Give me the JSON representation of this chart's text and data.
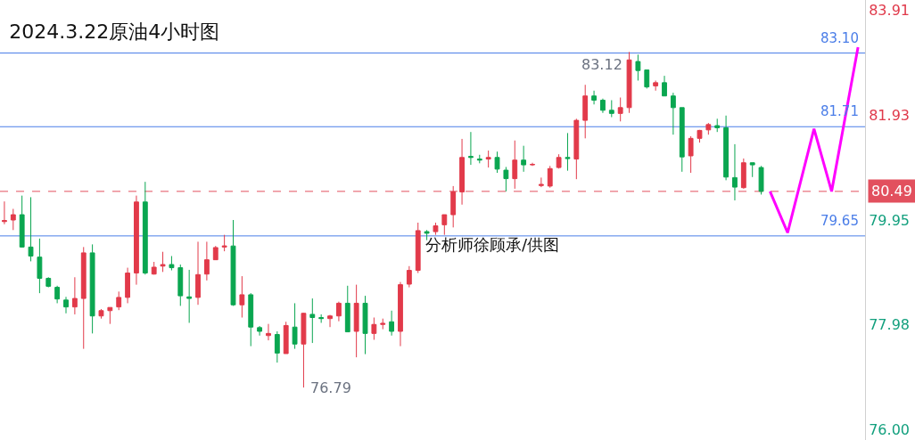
{
  "chart_data": {
    "type": "candlestick",
    "title": "2024.3.22原油4小时图",
    "categories": [
      null,
      null,
      null,
      null,
      null,
      null,
      null,
      null,
      null,
      null,
      null,
      null,
      null,
      null,
      null,
      null,
      null,
      null,
      null,
      null,
      null,
      null,
      null,
      null,
      null,
      null,
      null,
      null,
      null,
      null,
      null,
      null,
      null,
      null,
      null,
      null,
      null,
      null,
      null,
      null,
      null,
      null,
      null,
      null,
      null,
      null,
      null,
      null,
      null,
      null,
      null,
      null,
      null,
      null,
      null,
      null,
      null,
      null,
      null,
      null,
      null,
      null,
      null,
      null,
      null,
      null,
      null,
      null,
      null,
      null,
      null,
      null,
      null,
      null,
      null,
      null,
      null,
      null,
      null,
      null,
      null,
      null,
      null,
      null,
      null,
      null,
      null,
      null,
      null,
      null,
      null,
      null,
      null,
      null,
      null,
      null,
      null,
      null
    ],
    "ohlc": [
      [
        79.92,
        80.3,
        79.87,
        79.94
      ],
      [
        79.95,
        80.16,
        79.76,
        80.05
      ],
      [
        80.05,
        80.41,
        79.43,
        79.44
      ],
      [
        79.44,
        80.38,
        79.17,
        79.27
      ],
      [
        79.25,
        79.6,
        78.57,
        78.85
      ],
      [
        78.85,
        78.87,
        78.68,
        78.7
      ],
      [
        78.68,
        78.71,
        78.38,
        78.46
      ],
      [
        78.44,
        78.5,
        78.19,
        78.31
      ],
      [
        78.31,
        78.87,
        78.17,
        78.47
      ],
      [
        78.47,
        79.44,
        77.52,
        79.33
      ],
      [
        79.33,
        79.49,
        77.81,
        78.14
      ],
      [
        78.14,
        78.27,
        78.09,
        78.24
      ],
      [
        78.24,
        78.3,
        77.99,
        78.3
      ],
      [
        78.31,
        78.6,
        78.25,
        78.49
      ],
      [
        78.49,
        79.05,
        78.38,
        78.95
      ],
      [
        78.95,
        80.41,
        78.73,
        80.29
      ],
      [
        80.29,
        80.67,
        78.92,
        78.95
      ],
      [
        78.93,
        79.16,
        78.92,
        79.06
      ],
      [
        79.08,
        79.35,
        78.97,
        79.11
      ],
      [
        79.11,
        79.27,
        79.0,
        79.05
      ],
      [
        79.05,
        79.11,
        78.33,
        78.52
      ],
      [
        78.5,
        79.01,
        78.01,
        78.47
      ],
      [
        78.49,
        79.54,
        78.35,
        78.92
      ],
      [
        78.93,
        79.54,
        78.81,
        79.2
      ],
      [
        79.2,
        79.46,
        79.2,
        79.43
      ],
      [
        79.44,
        79.67,
        79.36,
        79.46
      ],
      [
        79.46,
        79.95,
        78.33,
        78.35
      ],
      [
        78.35,
        78.89,
        78.11,
        78.54
      ],
      [
        78.54,
        78.57,
        77.57,
        77.93
      ],
      [
        77.92,
        77.95,
        77.77,
        77.85
      ],
      [
        77.77,
        77.99,
        77.68,
        77.81
      ],
      [
        77.79,
        77.85,
        77.26,
        77.44
      ],
      [
        77.43,
        78.03,
        77.43,
        77.96
      ],
      [
        77.93,
        78.38,
        77.52,
        77.61
      ],
      [
        77.61,
        78.2,
        76.79,
        78.19
      ],
      [
        78.17,
        78.47,
        77.63,
        78.11
      ],
      [
        78.11,
        78.17,
        78.01,
        78.09
      ],
      [
        78.09,
        78.16,
        77.93,
        78.14
      ],
      [
        78.14,
        78.41,
        78.04,
        78.38
      ],
      [
        78.38,
        78.71,
        77.84,
        77.84
      ],
      [
        77.85,
        78.73,
        77.36,
        78.38
      ],
      [
        78.38,
        78.52,
        77.42,
        77.81
      ],
      [
        77.81,
        78.11,
        77.69,
        77.98
      ],
      [
        77.98,
        78.09,
        77.89,
        78.0
      ],
      [
        78.03,
        78.24,
        77.77,
        77.85
      ],
      [
        77.85,
        78.78,
        77.57,
        78.73
      ],
      [
        78.74,
        79.08,
        78.68,
        79.0
      ],
      [
        79.0,
        79.9,
        78.95,
        79.75
      ],
      [
        79.73,
        79.76,
        79.57,
        79.7
      ],
      [
        79.73,
        79.9,
        79.67,
        79.84
      ],
      [
        79.86,
        80.05,
        79.67,
        80.05
      ],
      [
        80.05,
        80.59,
        79.81,
        80.48
      ],
      [
        80.48,
        81.48,
        80.24,
        81.13
      ],
      [
        81.15,
        81.61,
        80.99,
        81.13
      ],
      [
        81.1,
        81.18,
        81.02,
        81.08
      ],
      [
        81.1,
        81.26,
        80.94,
        81.13
      ],
      [
        81.13,
        81.24,
        80.84,
        80.91
      ],
      [
        80.89,
        80.95,
        80.49,
        80.73
      ],
      [
        80.73,
        81.45,
        80.54,
        81.08
      ],
      [
        81.08,
        81.35,
        80.86,
        80.99
      ],
      [
        80.99,
        81.03,
        80.97,
        81.0
      ],
      [
        80.6,
        80.75,
        80.57,
        80.62
      ],
      [
        80.59,
        80.97,
        80.56,
        80.92
      ],
      [
        80.94,
        81.19,
        80.92,
        81.13
      ],
      [
        81.13,
        81.59,
        80.88,
        81.11
      ],
      [
        81.1,
        81.86,
        80.72,
        81.83
      ],
      [
        81.83,
        82.5,
        81.49,
        82.29
      ],
      [
        82.29,
        82.39,
        82.13,
        82.21
      ],
      [
        82.21,
        82.24,
        81.97,
        82.02
      ],
      [
        82.02,
        82.21,
        81.89,
        81.96
      ],
      [
        81.96,
        82.26,
        81.81,
        82.07
      ],
      [
        82.07,
        83.12,
        81.97,
        82.97
      ],
      [
        82.94,
        83.07,
        82.58,
        82.77
      ],
      [
        82.78,
        82.78,
        82.43,
        82.46
      ],
      [
        82.48,
        82.58,
        82.39,
        82.54
      ],
      [
        82.54,
        82.67,
        82.29,
        82.29
      ],
      [
        82.29,
        82.35,
        81.56,
        82.07
      ],
      [
        82.07,
        82.07,
        80.86,
        81.14
      ],
      [
        81.16,
        81.53,
        80.84,
        81.49
      ],
      [
        81.49,
        81.65,
        81.41,
        81.64
      ],
      [
        81.65,
        81.78,
        81.56,
        81.75
      ],
      [
        81.73,
        81.86,
        81.61,
        81.69
      ],
      [
        81.69,
        81.92,
        80.7,
        80.76
      ],
      [
        80.75,
        81.38,
        80.32,
        80.57
      ],
      [
        80.56,
        81.11,
        80.54,
        81.03
      ],
      [
        81.03,
        81.03,
        80.76,
        80.99
      ],
      [
        80.94,
        80.97,
        80.43,
        80.49
      ],
      null,
      null,
      null,
      null,
      null,
      null,
      null,
      null,
      null,
      null,
      null
    ],
    "colors": [
      "#e23a4a",
      "#e23a4a",
      "#0aa650",
      "#0aa650",
      "#0aa650",
      "#0aa650",
      "#0aa650",
      "#0aa650",
      "#e23a4a",
      "#e23a4a",
      "#0aa650",
      "#e23a4a",
      "#e23a4a",
      "#e23a4a",
      "#e23a4a",
      "#e23a4a",
      "#0aa650",
      "#e23a4a",
      "#e23a4a",
      "#0aa650",
      "#0aa650",
      "#0aa650",
      "#e23a4a",
      "#e23a4a",
      "#e23a4a",
      "#e23a4a",
      "#0aa650",
      "#e23a4a",
      "#0aa650",
      "#0aa650",
      "#e23a4a",
      "#0aa650",
      "#e23a4a",
      "#0aa650",
      "#e23a4a",
      "#0aa650",
      "#0aa650",
      "#e23a4a",
      "#e23a4a",
      "#0aa650",
      "#e23a4a",
      "#0aa650",
      "#e23a4a",
      "#e23a4a",
      "#0aa650",
      "#e23a4a",
      "#e23a4a",
      "#e23a4a",
      "#0aa650",
      "#e23a4a",
      "#e23a4a",
      "#e23a4a",
      "#e23a4a",
      "#0aa650",
      "#0aa650",
      "#e23a4a",
      "#0aa650",
      "#0aa650",
      "#e23a4a",
      "#0aa650",
      "#e23a4a",
      "#e23a4a",
      "#e23a4a",
      "#e23a4a",
      "#0aa650",
      "#e23a4a",
      "#e23a4a",
      "#0aa650",
      "#0aa650",
      "#0aa650",
      "#e23a4a",
      "#e23a4a",
      "#0aa650",
      "#0aa650",
      "#e23a4a",
      "#0aa650",
      "#0aa650",
      "#0aa650",
      "#e23a4a",
      "#e23a4a",
      "#e23a4a",
      "#0aa650",
      "#0aa650",
      "#0aa650",
      "#e23a4a",
      "#0aa650",
      "#0aa650",
      null,
      null,
      null,
      null,
      null,
      null,
      null,
      null,
      null,
      null,
      null
    ],
    "series": [
      {
        "type": "line",
        "color": "#ff00ff",
        "values": [
          null,
          null,
          null,
          null,
          null,
          null,
          null,
          null,
          null,
          null,
          null,
          null,
          null,
          null,
          null,
          null,
          null,
          null,
          null,
          null,
          null,
          null,
          null,
          null,
          null,
          null,
          null,
          null,
          null,
          null,
          null,
          null,
          null,
          null,
          null,
          null,
          null,
          null,
          null,
          null,
          null,
          null,
          null,
          null,
          null,
          null,
          null,
          null,
          null,
          null,
          null,
          null,
          null,
          null,
          null,
          null,
          null,
          null,
          null,
          null,
          null,
          null,
          null,
          null,
          null,
          null,
          null,
          null,
          null,
          null,
          null,
          null,
          null,
          null,
          null,
          null,
          null,
          null,
          null,
          null,
          null,
          null,
          null,
          null,
          null,
          null,
          null,
          80.49,
          null,
          79.71,
          null,
          null,
          81.67,
          null,
          80.49,
          null,
          null,
          83.21
        ]
      }
    ],
    "ref_lines": [
      {
        "axis": "y",
        "value": 83.1,
        "label": "83.10",
        "color": "#4a7de8",
        "line_style": "solid"
      },
      {
        "axis": "y",
        "value": 81.71,
        "label": "81.71",
        "color": "#4a7de8",
        "line_style": "solid"
      },
      {
        "axis": "y",
        "value": 79.65,
        "label": "79.65",
        "color": "#4a7de8",
        "line_style": "solid"
      },
      {
        "axis": "y",
        "value": 80.49,
        "label": "80.49",
        "color": "#e2505e",
        "line_style": "dashed"
      }
    ],
    "annotations": [
      "83.12",
      "76.79",
      "分析师徐顾承/供图"
    ],
    "ylim": [
      75.8,
      84.1
    ],
    "yticks": [
      83.91,
      81.93,
      79.95,
      77.98,
      {
        "value": 76,
        "label": "76.00"
      }
    ],
    "tick_labels": "y",
    "marker": "none",
    "line_style": "solid"
  }
}
